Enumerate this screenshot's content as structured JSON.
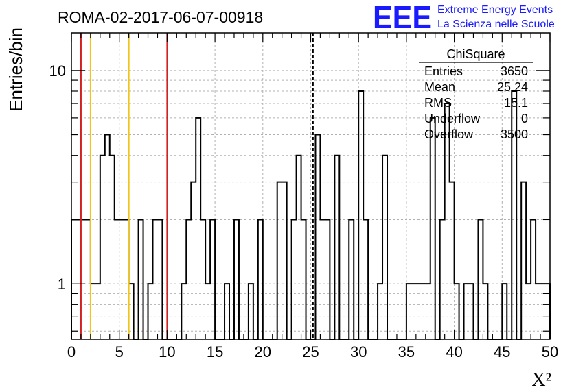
{
  "chart_data": {
    "type": "bar",
    "title": "ROMA-02-2017-06-07-00918",
    "xlabel": "X²",
    "ylabel": "Entries/bin",
    "xlim": [
      0,
      50
    ],
    "ylim": [
      0.55,
      15
    ],
    "y_scale": "log",
    "grid": true,
    "x_ticks": [
      "0",
      "5",
      "10",
      "15",
      "20",
      "25",
      "30",
      "35",
      "40",
      "45",
      "50"
    ],
    "y_ticks": [
      "1",
      "10"
    ],
    "bin_width": 0.5,
    "bins": [
      {
        "x": 0.0,
        "y": 2
      },
      {
        "x": 0.5,
        "y": 2
      },
      {
        "x": 1.0,
        "y": 2
      },
      {
        "x": 1.5,
        "y": 2
      },
      {
        "x": 2.0,
        "y": 1
      },
      {
        "x": 2.5,
        "y": 1
      },
      {
        "x": 3.0,
        "y": 4
      },
      {
        "x": 3.5,
        "y": 5
      },
      {
        "x": 4.0,
        "y": 4
      },
      {
        "x": 4.5,
        "y": 2
      },
      {
        "x": 5.0,
        "y": 2
      },
      {
        "x": 5.5,
        "y": 2
      },
      {
        "x": 6.0,
        "y": 1
      },
      {
        "x": 6.5,
        "y": 0
      },
      {
        "x": 7.0,
        "y": 2
      },
      {
        "x": 7.5,
        "y": 0
      },
      {
        "x": 8.0,
        "y": 1
      },
      {
        "x": 8.5,
        "y": 2
      },
      {
        "x": 9.0,
        "y": 2
      },
      {
        "x": 9.5,
        "y": 0
      },
      {
        "x": 10.0,
        "y": 0
      },
      {
        "x": 10.5,
        "y": 0
      },
      {
        "x": 11.0,
        "y": 0
      },
      {
        "x": 11.5,
        "y": 1
      },
      {
        "x": 12.0,
        "y": 2
      },
      {
        "x": 12.5,
        "y": 3
      },
      {
        "x": 13.0,
        "y": 6
      },
      {
        "x": 13.5,
        "y": 2
      },
      {
        "x": 14.0,
        "y": 1
      },
      {
        "x": 14.5,
        "y": 2
      },
      {
        "x": 15.0,
        "y": 0
      },
      {
        "x": 15.5,
        "y": 0
      },
      {
        "x": 16.0,
        "y": 1
      },
      {
        "x": 16.5,
        "y": 0
      },
      {
        "x": 17.0,
        "y": 2
      },
      {
        "x": 17.5,
        "y": 0
      },
      {
        "x": 18.0,
        "y": 0
      },
      {
        "x": 18.5,
        "y": 1
      },
      {
        "x": 19.0,
        "y": 0
      },
      {
        "x": 19.5,
        "y": 2
      },
      {
        "x": 20.0,
        "y": 0
      },
      {
        "x": 20.5,
        "y": 0
      },
      {
        "x": 21.0,
        "y": 0
      },
      {
        "x": 21.5,
        "y": 3
      },
      {
        "x": 22.0,
        "y": 3
      },
      {
        "x": 22.5,
        "y": 0
      },
      {
        "x": 23.0,
        "y": 2
      },
      {
        "x": 23.5,
        "y": 4
      },
      {
        "x": 24.0,
        "y": 2
      },
      {
        "x": 24.5,
        "y": 0
      },
      {
        "x": 25.0,
        "y": 0
      },
      {
        "x": 25.5,
        "y": 5
      },
      {
        "x": 26.0,
        "y": 2
      },
      {
        "x": 26.5,
        "y": 2
      },
      {
        "x": 27.0,
        "y": 0
      },
      {
        "x": 27.5,
        "y": 4
      },
      {
        "x": 28.0,
        "y": 0
      },
      {
        "x": 28.5,
        "y": 0
      },
      {
        "x": 29.0,
        "y": 2
      },
      {
        "x": 29.5,
        "y": 0
      },
      {
        "x": 30.0,
        "y": 8
      },
      {
        "x": 30.5,
        "y": 2
      },
      {
        "x": 31.0,
        "y": 0
      },
      {
        "x": 31.5,
        "y": 0
      },
      {
        "x": 32.0,
        "y": 1
      },
      {
        "x": 32.5,
        "y": 4
      },
      {
        "x": 33.0,
        "y": 0
      },
      {
        "x": 33.5,
        "y": 0
      },
      {
        "x": 34.0,
        "y": 0
      },
      {
        "x": 34.5,
        "y": 0
      },
      {
        "x": 35.0,
        "y": 1
      },
      {
        "x": 35.5,
        "y": 1
      },
      {
        "x": 36.0,
        "y": 1
      },
      {
        "x": 36.5,
        "y": 1
      },
      {
        "x": 37.0,
        "y": 1
      },
      {
        "x": 37.5,
        "y": 6
      },
      {
        "x": 38.0,
        "y": 0
      },
      {
        "x": 38.5,
        "y": 2
      },
      {
        "x": 39.0,
        "y": 7
      },
      {
        "x": 39.5,
        "y": 3
      },
      {
        "x": 40.0,
        "y": 1
      },
      {
        "x": 40.5,
        "y": 0
      },
      {
        "x": 41.0,
        "y": 1
      },
      {
        "x": 41.5,
        "y": 1
      },
      {
        "x": 42.0,
        "y": 0
      },
      {
        "x": 42.5,
        "y": 2
      },
      {
        "x": 43.0,
        "y": 1
      },
      {
        "x": 43.5,
        "y": 0
      },
      {
        "x": 44.0,
        "y": 0
      },
      {
        "x": 44.5,
        "y": 0
      },
      {
        "x": 45.0,
        "y": 1
      },
      {
        "x": 45.5,
        "y": 0
      },
      {
        "x": 46.0,
        "y": 8
      },
      {
        "x": 46.5,
        "y": 0
      },
      {
        "x": 47.0,
        "y": 3
      },
      {
        "x": 47.5,
        "y": 1
      },
      {
        "x": 48.0,
        "y": 2
      },
      {
        "x": 48.5,
        "y": 1
      },
      {
        "x": 49.0,
        "y": 1
      },
      {
        "x": 49.5,
        "y": 1
      }
    ],
    "vertical_lines": [
      {
        "x": 1,
        "color": "#d42020",
        "style": "solid"
      },
      {
        "x": 2,
        "color": "#f0c419",
        "style": "solid"
      },
      {
        "x": 6,
        "color": "#f0c419",
        "style": "solid"
      },
      {
        "x": 10,
        "color": "#d42020",
        "style": "solid"
      },
      {
        "x": 25.24,
        "color": "#000000",
        "style": "dashed"
      }
    ],
    "stats_box": {
      "title": "ChiSquare",
      "rows": [
        {
          "label": "Entries",
          "value": "3650"
        },
        {
          "label": "Mean",
          "value": "25.24"
        },
        {
          "label": "RMS",
          "value": "15.1"
        },
        {
          "label": "Underflow",
          "value": "0"
        },
        {
          "label": "Overflow",
          "value": "3500"
        }
      ]
    },
    "logo": {
      "mark": "EEE",
      "line1": "Extreme Energy Events",
      "line2": "La Scienza nelle Scuole",
      "color": "#1a1aff"
    },
    "colors": {
      "grid": "#b0b0b0",
      "histogram": "#000000"
    }
  }
}
